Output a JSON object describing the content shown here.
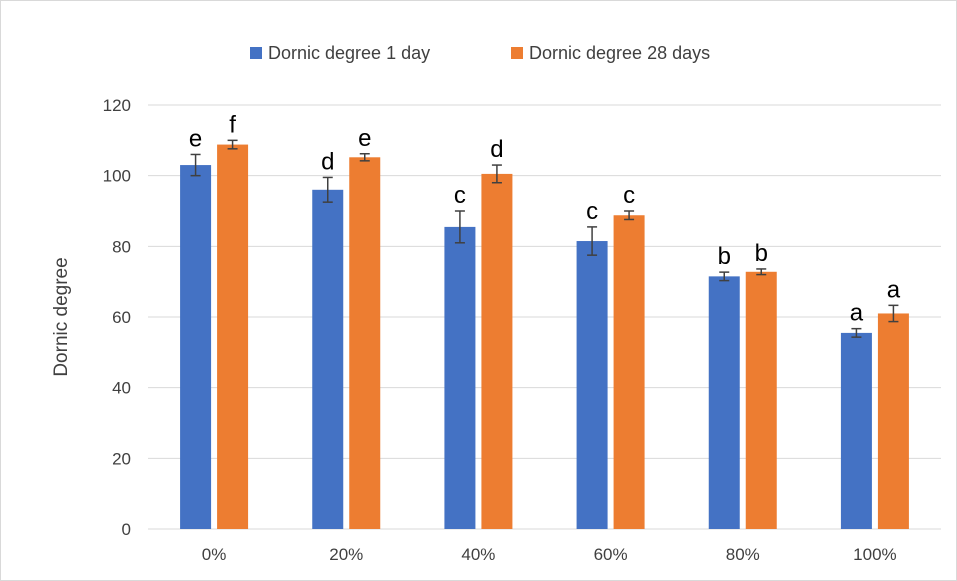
{
  "chart_data": {
    "type": "bar",
    "title": "",
    "xlabel": "",
    "ylabel": "Dornic degree",
    "categories": [
      "0%",
      "20%",
      "40%",
      "60%",
      "80%",
      "100%"
    ],
    "series": [
      {
        "name": "Dornic degree 1 day",
        "color": "#4472c4",
        "values": [
          103,
          96,
          85.5,
          81.5,
          71.5,
          55.5
        ],
        "error": [
          3,
          3.5,
          4.5,
          4,
          1.2,
          1.2
        ],
        "annotations": [
          "e",
          "d",
          "c",
          "c",
          "b",
          "a"
        ]
      },
      {
        "name": "Dornic degree 28 days",
        "color": "#ed7d31",
        "values": [
          108.8,
          105.2,
          100.5,
          88.8,
          72.8,
          61
        ],
        "error": [
          1.2,
          1,
          2.5,
          1.2,
          0.8,
          2.3
        ],
        "annotations": [
          "f",
          "e",
          "d",
          "c",
          "b",
          "a"
        ]
      }
    ],
    "ylim": [
      0,
      120
    ],
    "yticks": [
      0,
      20,
      40,
      60,
      80,
      100,
      120
    ],
    "grid": true,
    "legend_position": "top",
    "error_bars": true,
    "colors": {
      "grid": "#d9d9d9",
      "axis": "#d9d9d9",
      "error_bar": "#404040",
      "text": "#404040",
      "annotation": "#000000"
    }
  }
}
